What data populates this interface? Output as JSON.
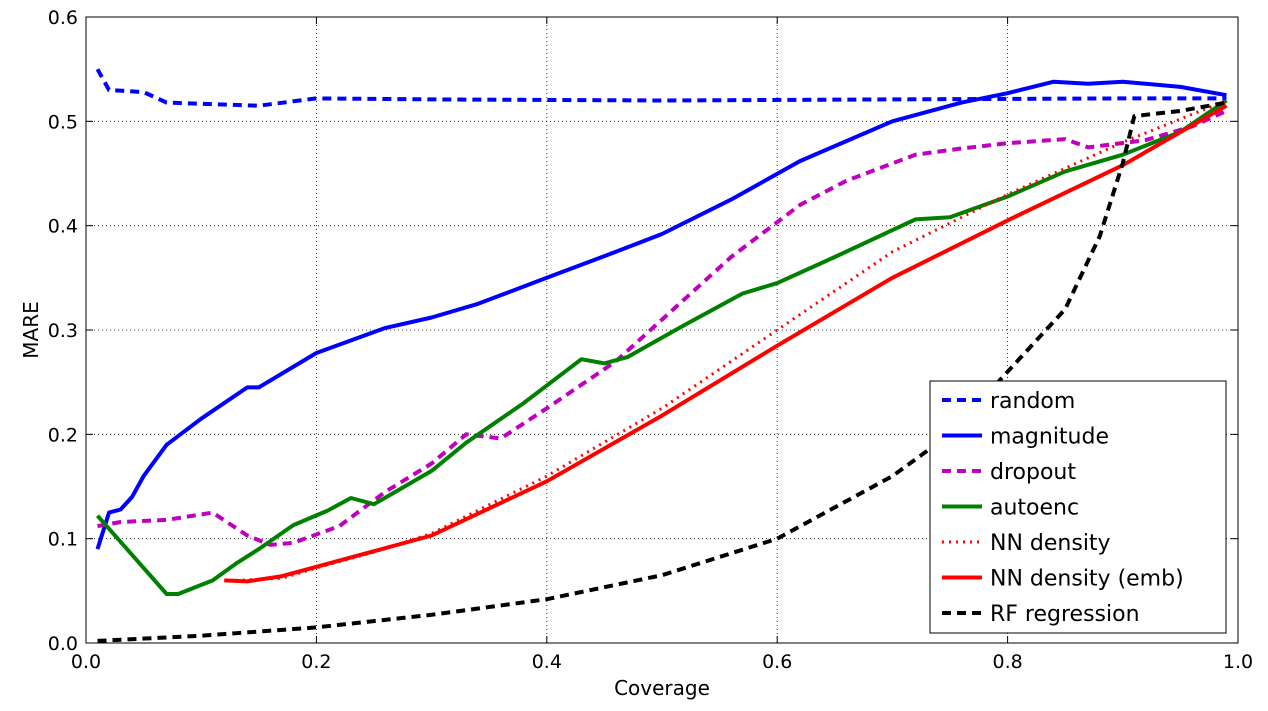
{
  "chart_data": {
    "type": "line",
    "title": "",
    "xlabel": "Coverage",
    "ylabel": "MARE",
    "xlim": [
      0.0,
      1.0
    ],
    "ylim": [
      0.0,
      0.6
    ],
    "xticks": [
      "0.0",
      "0.2",
      "0.4",
      "0.6",
      "0.8",
      "1.0"
    ],
    "yticks": [
      "0.0",
      "0.1",
      "0.2",
      "0.3",
      "0.4",
      "0.5",
      "0.6"
    ],
    "grid": true,
    "legend_position": "bottom-right",
    "series": [
      {
        "name": "random",
        "color": "#0000ff",
        "style": "dashed",
        "points": [
          [
            0.01,
            0.55
          ],
          [
            0.02,
            0.53
          ],
          [
            0.05,
            0.528
          ],
          [
            0.07,
            0.518
          ],
          [
            0.15,
            0.515
          ],
          [
            0.2,
            0.522
          ],
          [
            0.3,
            0.521
          ],
          [
            0.5,
            0.52
          ],
          [
            0.7,
            0.521
          ],
          [
            0.9,
            0.522
          ],
          [
            0.99,
            0.522
          ]
        ]
      },
      {
        "name": "magnitude",
        "color": "#0000ff",
        "style": "solid",
        "points": [
          [
            0.01,
            0.09
          ],
          [
            0.02,
            0.125
          ],
          [
            0.03,
            0.128
          ],
          [
            0.04,
            0.14
          ],
          [
            0.05,
            0.16
          ],
          [
            0.07,
            0.19
          ],
          [
            0.1,
            0.215
          ],
          [
            0.14,
            0.245
          ],
          [
            0.15,
            0.245
          ],
          [
            0.2,
            0.278
          ],
          [
            0.26,
            0.302
          ],
          [
            0.3,
            0.312
          ],
          [
            0.34,
            0.325
          ],
          [
            0.4,
            0.35
          ],
          [
            0.46,
            0.375
          ],
          [
            0.5,
            0.392
          ],
          [
            0.56,
            0.425
          ],
          [
            0.62,
            0.462
          ],
          [
            0.7,
            0.5
          ],
          [
            0.76,
            0.518
          ],
          [
            0.8,
            0.527
          ],
          [
            0.84,
            0.538
          ],
          [
            0.87,
            0.536
          ],
          [
            0.9,
            0.538
          ],
          [
            0.95,
            0.533
          ],
          [
            0.99,
            0.525
          ]
        ]
      },
      {
        "name": "dropout",
        "color": "#bf00bf",
        "style": "dashed",
        "points": [
          [
            0.01,
            0.112
          ],
          [
            0.03,
            0.116
          ],
          [
            0.07,
            0.118
          ],
          [
            0.11,
            0.125
          ],
          [
            0.14,
            0.103
          ],
          [
            0.16,
            0.094
          ],
          [
            0.18,
            0.096
          ],
          [
            0.22,
            0.112
          ],
          [
            0.26,
            0.145
          ],
          [
            0.3,
            0.172
          ],
          [
            0.33,
            0.2
          ],
          [
            0.36,
            0.196
          ],
          [
            0.4,
            0.225
          ],
          [
            0.46,
            0.27
          ],
          [
            0.5,
            0.31
          ],
          [
            0.56,
            0.37
          ],
          [
            0.62,
            0.42
          ],
          [
            0.66,
            0.443
          ],
          [
            0.72,
            0.468
          ],
          [
            0.76,
            0.474
          ],
          [
            0.8,
            0.479
          ],
          [
            0.85,
            0.483
          ],
          [
            0.87,
            0.475
          ],
          [
            0.92,
            0.482
          ],
          [
            0.96,
            0.495
          ],
          [
            0.99,
            0.51
          ]
        ]
      },
      {
        "name": "autoenc",
        "color": "#008000",
        "style": "solid",
        "points": [
          [
            0.01,
            0.122
          ],
          [
            0.07,
            0.047
          ],
          [
            0.08,
            0.047
          ],
          [
            0.11,
            0.06
          ],
          [
            0.13,
            0.076
          ],
          [
            0.15,
            0.09
          ],
          [
            0.18,
            0.113
          ],
          [
            0.21,
            0.127
          ],
          [
            0.23,
            0.139
          ],
          [
            0.25,
            0.133
          ],
          [
            0.3,
            0.165
          ],
          [
            0.33,
            0.192
          ],
          [
            0.38,
            0.23
          ],
          [
            0.43,
            0.272
          ],
          [
            0.45,
            0.268
          ],
          [
            0.47,
            0.274
          ],
          [
            0.52,
            0.305
          ],
          [
            0.57,
            0.335
          ],
          [
            0.6,
            0.345
          ],
          [
            0.65,
            0.37
          ],
          [
            0.72,
            0.406
          ],
          [
            0.75,
            0.408
          ],
          [
            0.8,
            0.428
          ],
          [
            0.85,
            0.452
          ],
          [
            0.9,
            0.468
          ],
          [
            0.95,
            0.49
          ],
          [
            0.99,
            0.52
          ]
        ]
      },
      {
        "name": "NN density",
        "color": "#ff0000",
        "style": "dotted",
        "points": [
          [
            0.13,
            0.06
          ],
          [
            0.17,
            0.062
          ],
          [
            0.2,
            0.072
          ],
          [
            0.25,
            0.087
          ],
          [
            0.3,
            0.105
          ],
          [
            0.4,
            0.16
          ],
          [
            0.5,
            0.225
          ],
          [
            0.6,
            0.3
          ],
          [
            0.7,
            0.375
          ],
          [
            0.8,
            0.43
          ],
          [
            0.9,
            0.48
          ],
          [
            0.99,
            0.52
          ]
        ]
      },
      {
        "name": "NN density (emb)",
        "color": "#ff0000",
        "style": "solid",
        "points": [
          [
            0.12,
            0.06
          ],
          [
            0.14,
            0.059
          ],
          [
            0.17,
            0.064
          ],
          [
            0.2,
            0.073
          ],
          [
            0.25,
            0.088
          ],
          [
            0.3,
            0.103
          ],
          [
            0.4,
            0.155
          ],
          [
            0.5,
            0.218
          ],
          [
            0.6,
            0.285
          ],
          [
            0.7,
            0.35
          ],
          [
            0.8,
            0.405
          ],
          [
            0.9,
            0.458
          ],
          [
            0.99,
            0.515
          ]
        ]
      },
      {
        "name": "RF regression",
        "color": "#000000",
        "style": "dashed",
        "points": [
          [
            0.01,
            0.002
          ],
          [
            0.1,
            0.007
          ],
          [
            0.2,
            0.015
          ],
          [
            0.3,
            0.027
          ],
          [
            0.4,
            0.042
          ],
          [
            0.5,
            0.065
          ],
          [
            0.6,
            0.1
          ],
          [
            0.7,
            0.16
          ],
          [
            0.75,
            0.2
          ],
          [
            0.8,
            0.26
          ],
          [
            0.85,
            0.32
          ],
          [
            0.88,
            0.39
          ],
          [
            0.9,
            0.46
          ],
          [
            0.91,
            0.505
          ],
          [
            0.95,
            0.51
          ],
          [
            0.99,
            0.518
          ]
        ]
      }
    ]
  }
}
